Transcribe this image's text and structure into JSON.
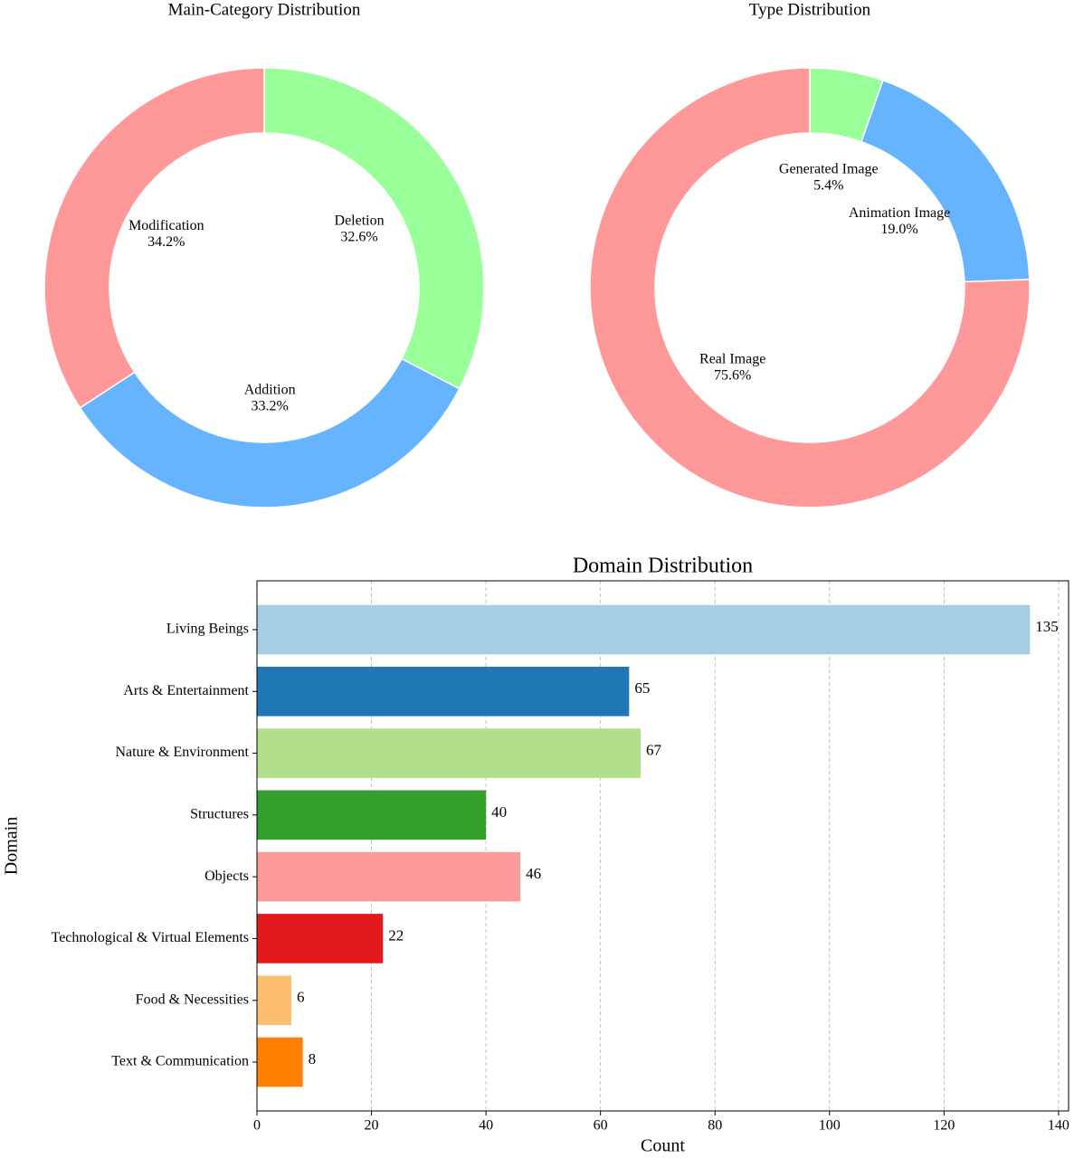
{
  "chart_data": [
    {
      "type": "pie",
      "title": "Main-Category Distribution",
      "categories": [
        "Deletion",
        "Addition",
        "Modification"
      ],
      "values": [
        32.6,
        33.2,
        34.2
      ],
      "value_labels": [
        "32.6%",
        "33.2%",
        "34.2%"
      ],
      "colors": [
        "#99ff99",
        "#66b3ff",
        "#ff9999"
      ]
    },
    {
      "type": "pie",
      "title": "Type Distribution",
      "categories": [
        "Generated Image",
        "Animation Image",
        "Real Image"
      ],
      "values": [
        5.4,
        19.0,
        75.6
      ],
      "value_labels": [
        "5.4%",
        "19.0%",
        "75.6%"
      ],
      "colors": [
        "#99ff99",
        "#66b3ff",
        "#ff9999"
      ]
    },
    {
      "type": "bar",
      "orientation": "horizontal",
      "title": "Domain Distribution",
      "xlabel": "Count",
      "ylabel": "Domain",
      "categories": [
        "Living Beings",
        "Arts & Entertainment",
        "Nature & Environment",
        "Structures",
        "Objects",
        "Technological & Virtual Elements",
        "Food & Necessities",
        "Text & Communication"
      ],
      "values": [
        135,
        65,
        67,
        40,
        46,
        22,
        6,
        8
      ],
      "colors": [
        "#a6cee3",
        "#1f78b4",
        "#b2df8a",
        "#33a02c",
        "#fb9a99",
        "#e31a1c",
        "#fdbf6f",
        "#ff7f00"
      ],
      "xlim": [
        0,
        141.75
      ],
      "xticks": [
        0,
        20,
        40,
        60,
        80,
        100,
        120,
        140
      ],
      "grid": true
    }
  ]
}
